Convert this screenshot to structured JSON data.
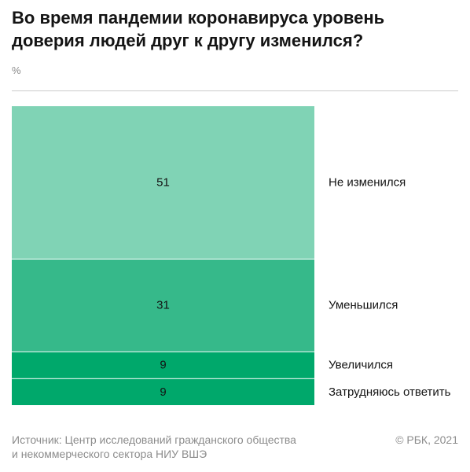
{
  "chart_data": {
    "type": "bar",
    "stacked": true,
    "title": "Во время пандемии коронавируса уровень доверия людей друг к другу изменился?",
    "unit": "%",
    "categories": [
      "Не изменился",
      "Уменьшился",
      "Увеличился",
      "Затрудняюсь ответить"
    ],
    "values": [
      51,
      31,
      9,
      9
    ],
    "colors": [
      "#80d3b5",
      "#36b98a",
      "#00a86b",
      "#00a86b"
    ],
    "grid": false
  },
  "footer": {
    "source_lines": [
      "Источник: Центр исследований гражданского общества",
      "и некоммерческого сектора НИУ ВШЭ"
    ],
    "copyright": "© РБК, 2021"
  }
}
